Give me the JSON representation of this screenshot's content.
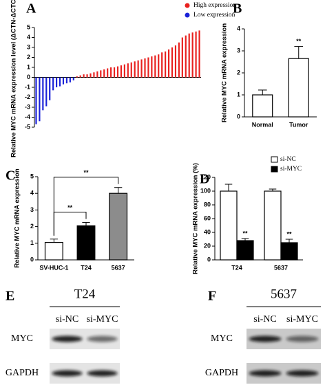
{
  "chart_data": [
    {
      "type": "bar",
      "panel_label": "A",
      "y_label": "Relative MYC mRNA expression level (ΔCTN-ΔCTC)",
      "categories": [
        null,
        null,
        null,
        null,
        null,
        null,
        null,
        null,
        null,
        null,
        null,
        null,
        null,
        null,
        null,
        null,
        null,
        null,
        null,
        null,
        null,
        null,
        null,
        null,
        null,
        null,
        null,
        null,
        null,
        null,
        null,
        null,
        null,
        null,
        null,
        null,
        null,
        null,
        null,
        null,
        null,
        null,
        null,
        null,
        null,
        null,
        null,
        null,
        null
      ],
      "series": [
        {
          "name": "High expression",
          "color": "#e8201e",
          "values": [
            null,
            null,
            null,
            null,
            null,
            null,
            null,
            null,
            null,
            null,
            null,
            null,
            0.1,
            0.2,
            0.3,
            0.3,
            0.4,
            0.5,
            0.6,
            0.7,
            0.8,
            0.9,
            1.0,
            1.0,
            1.1,
            1.2,
            1.3,
            1.4,
            1.5,
            1.6,
            1.7,
            1.8,
            1.9,
            2.0,
            2.1,
            2.2,
            2.3,
            2.5,
            2.6,
            2.8,
            3.0,
            3.2,
            3.5,
            4.0,
            4.2,
            4.4,
            4.5,
            4.6,
            4.7
          ]
        },
        {
          "name": "Low expression",
          "color": "#1a22d8",
          "values": [
            -4.7,
            -4.4,
            -3.3,
            -2.9,
            -2.3,
            -1.3,
            -1.0,
            -0.9,
            -0.7,
            -0.6,
            -0.5,
            -0.3,
            null,
            null,
            null,
            null,
            null,
            null,
            null,
            null,
            null,
            null,
            null,
            null,
            null,
            null,
            null,
            null,
            null,
            null,
            null,
            null,
            null,
            null,
            null,
            null,
            null,
            null,
            null,
            null,
            null,
            null,
            null,
            null,
            null,
            null,
            null,
            null,
            null
          ]
        }
      ],
      "ylim": [
        -5,
        5
      ],
      "yticks": [
        -5,
        -4,
        -3,
        -2,
        -1,
        0,
        1,
        2,
        3,
        4,
        5
      ],
      "legend": "top-right"
    },
    {
      "type": "bar",
      "panel_label": "B",
      "y_label": "Relative MYC mRNA expression",
      "categories": [
        "Normal",
        "Tumor"
      ],
      "values": [
        1.0,
        2.65
      ],
      "errors": [
        0.22,
        0.55
      ],
      "significance": [
        null,
        "**"
      ],
      "color": "#ffffff",
      "ylim": [
        0,
        4
      ],
      "yticks": [
        0,
        1,
        2,
        3,
        4
      ]
    },
    {
      "type": "bar",
      "panel_label": "C",
      "y_label": "Relative MYC mRNA expression",
      "categories": [
        "SV-HUC-1",
        "T24",
        "5637"
      ],
      "values": [
        1.05,
        2.05,
        4.0
      ],
      "errors": [
        0.2,
        0.2,
        0.35
      ],
      "colors": [
        "#ffffff",
        "#000000",
        "#8c8c8c"
      ],
      "comparisons": [
        {
          "pair": [
            0,
            1
          ],
          "label": "**"
        },
        {
          "pair": [
            0,
            2
          ],
          "label": "**"
        }
      ],
      "ylim": [
        0,
        5
      ],
      "yticks": [
        0,
        1,
        2,
        3,
        4,
        5
      ]
    },
    {
      "type": "bar",
      "panel_label": "D",
      "y_label": "Relative MYC mRNA expression (%)",
      "categories": [
        "T24",
        "5637"
      ],
      "series": [
        {
          "name": "si-NC",
          "color": "#ffffff",
          "values": [
            100,
            100
          ],
          "errors": [
            10,
            3
          ]
        },
        {
          "name": "si-MYC",
          "color": "#000000",
          "values": [
            28,
            25
          ],
          "errors": [
            3,
            5
          ],
          "significance": [
            "**",
            "**"
          ]
        }
      ],
      "ylim": [
        0,
        120
      ],
      "yticks": [
        0,
        20,
        40,
        60,
        80,
        100,
        120
      ],
      "legend": "top-right"
    }
  ],
  "blots": [
    {
      "panel_label": "E",
      "cell_line": "T24",
      "lanes": [
        "si-NC",
        "si-MYC"
      ],
      "rows": [
        "MYC",
        "GAPDH"
      ]
    },
    {
      "panel_label": "F",
      "cell_line": "5637",
      "lanes": [
        "si-NC",
        "si-MYC"
      ],
      "rows": [
        "MYC",
        "GAPDH"
      ]
    }
  ]
}
